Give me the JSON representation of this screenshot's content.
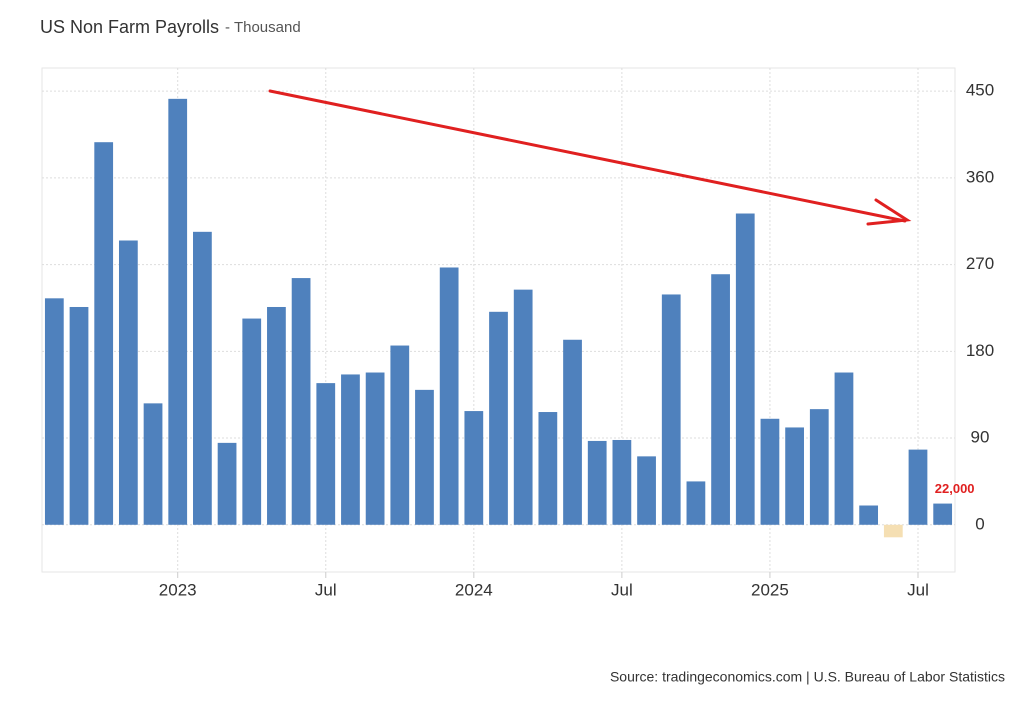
{
  "chart_data": {
    "type": "bar",
    "title": "US Non Farm Payrolls",
    "subtitle": "- Thousand",
    "source": "Source: tradingeconomics.com | U.S. Bureau of Labor Statistics",
    "categories": [
      null,
      null,
      null,
      null,
      null,
      "2023",
      null,
      null,
      null,
      null,
      null,
      "Jul",
      null,
      null,
      null,
      null,
      null,
      "2024",
      null,
      null,
      null,
      null,
      null,
      "Jul",
      null,
      null,
      null,
      null,
      null,
      "2025",
      null,
      null,
      null,
      null,
      null,
      "Jul",
      null
    ],
    "values": [
      235,
      226,
      397,
      295,
      126,
      442,
      304,
      85,
      214,
      226,
      256,
      147,
      156,
      158,
      186,
      140,
      267,
      118,
      221,
      244,
      117,
      192,
      87,
      88,
      71,
      239,
      45,
      260,
      323,
      110,
      101,
      120,
      158,
      20,
      -13,
      78,
      22
    ],
    "value_labels": [
      null,
      null,
      null,
      null,
      null,
      null,
      null,
      null,
      null,
      null,
      null,
      null,
      null,
      null,
      null,
      null,
      null,
      null,
      null,
      null,
      null,
      null,
      null,
      null,
      null,
      null,
      null,
      null,
      null,
      null,
      null,
      null,
      null,
      null,
      null,
      null,
      "22,000"
    ],
    "color": "#4f81bd",
    "negative_color": "#f5dfb3",
    "ylim": [
      -49,
      474
    ],
    "yticks": [
      0,
      90,
      180,
      270,
      360,
      450
    ],
    "grid": true
  }
}
